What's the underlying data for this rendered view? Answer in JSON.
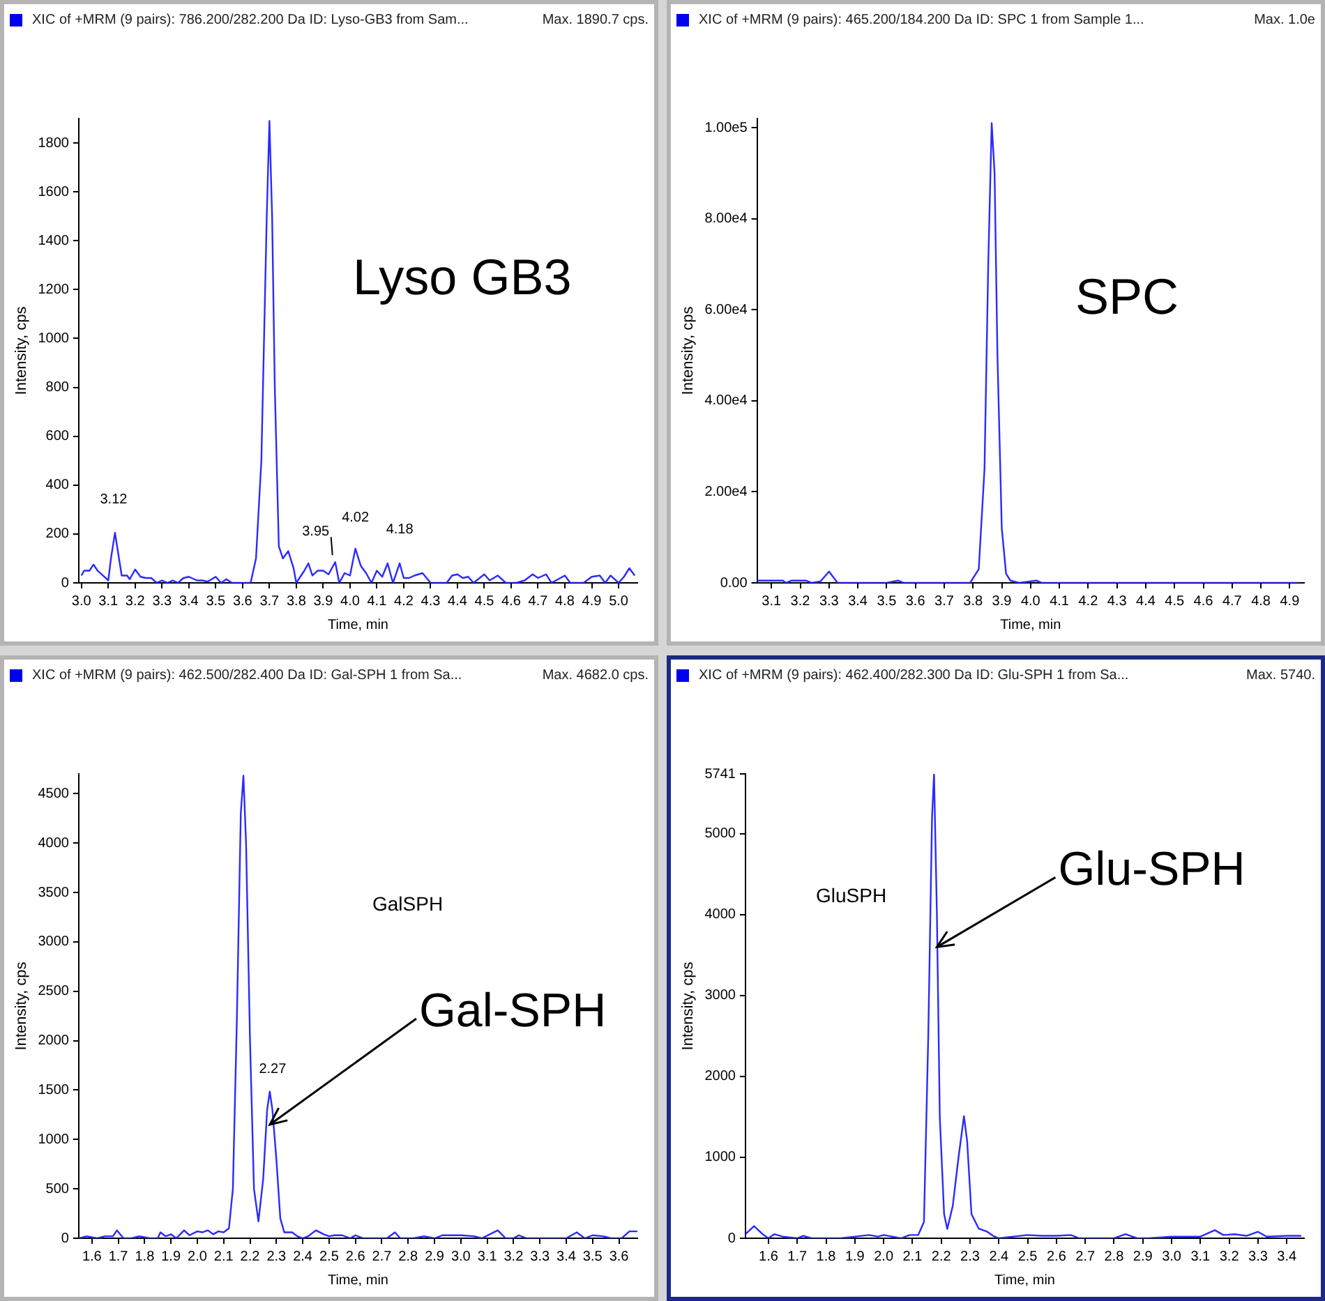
{
  "chart_data": [
    {
      "type": "line",
      "title": "XIC of +MRM (9 pairs): 786.200/282.200 Da ID: Lyso-GB3 from Sam...",
      "subtitle": "Max. 1890.7 cps.",
      "xlabel": "Time, min",
      "ylabel": "Intensity, cps",
      "annotations": [
        "Lyso GB3",
        {
          "text": "3.12",
          "x": 3.12,
          "y": 205
        },
        {
          "text": "3.95",
          "x": 3.945,
          "y": 85
        },
        {
          "text": "4.02",
          "x": 4.02,
          "y": 140
        },
        {
          "text": "4.18",
          "x": 4.185,
          "y": 80
        }
      ],
      "x": [
        3.0,
        3.01,
        3.03,
        3.045,
        3.06,
        3.08,
        3.1,
        3.11,
        3.125,
        3.14,
        3.15,
        3.17,
        3.18,
        3.2,
        3.22,
        3.24,
        3.26,
        3.28,
        3.3,
        3.32,
        3.34,
        3.36,
        3.38,
        3.4,
        3.43,
        3.45,
        3.47,
        3.5,
        3.52,
        3.54,
        3.56,
        3.63,
        3.65,
        3.67,
        3.69,
        3.7,
        3.71,
        3.72,
        3.735,
        3.75,
        3.77,
        3.79,
        3.8,
        3.83,
        3.845,
        3.86,
        3.88,
        3.9,
        3.92,
        3.945,
        3.96,
        3.98,
        4.0,
        4.02,
        4.04,
        4.06,
        4.08,
        4.1,
        4.12,
        4.14,
        4.16,
        4.185,
        4.2,
        4.22,
        4.24,
        4.27,
        4.3,
        4.36,
        4.38,
        4.4,
        4.42,
        4.44,
        4.46,
        4.5,
        4.52,
        4.55,
        4.58,
        4.62,
        4.65,
        4.68,
        4.7,
        4.73,
        4.75,
        4.8,
        4.82,
        4.87,
        4.9,
        4.93,
        4.95,
        4.97,
        5.0,
        5.02,
        5.04,
        5.06
      ],
      "series": [
        {
          "color": "#2a2aff",
          "values": [
            30,
            50,
            50,
            75,
            50,
            30,
            10,
            100,
            205,
            100,
            30,
            30,
            15,
            55,
            25,
            20,
            20,
            0,
            10,
            0,
            10,
            0,
            20,
            25,
            10,
            10,
            5,
            25,
            0,
            15,
            0,
            0,
            100,
            500,
            1500,
            1890,
            1500,
            800,
            150,
            100,
            130,
            60,
            0,
            50,
            80,
            30,
            50,
            50,
            35,
            85,
            0,
            40,
            30,
            140,
            70,
            40,
            0,
            50,
            25,
            80,
            0,
            80,
            20,
            20,
            30,
            40,
            0,
            0,
            30,
            35,
            20,
            25,
            0,
            35,
            10,
            30,
            0,
            0,
            10,
            35,
            20,
            35,
            0,
            30,
            0,
            0,
            25,
            30,
            0,
            30,
            0,
            25,
            60,
            30
          ]
        }
      ],
      "xlim": [
        2.99,
        5.07
      ],
      "ylim": [
        0,
        1900
      ],
      "xticks": [
        {
          "value": 3.0,
          "label": "3.0"
        },
        3.1,
        3.2,
        3.3,
        3.4,
        3.5,
        3.6,
        3.7,
        3.8,
        3.9,
        {
          "value": 4.0,
          "label": "4.0"
        },
        4.1,
        4.2,
        4.3,
        4.4,
        4.5,
        4.6,
        4.7,
        4.8,
        4.9,
        {
          "value": 5.0,
          "label": "5.0"
        }
      ],
      "yticks": [
        0,
        200,
        400,
        600,
        800,
        1000,
        1200,
        1400,
        1600,
        1800
      ]
    },
    {
      "type": "line",
      "title": "XIC of +MRM (9 pairs): 465.200/184.200 Da ID: SPC 1 from Sample 1...",
      "subtitle": "Max. 1.0e",
      "xlabel": "Time, min",
      "ylabel": "Intensity, cps",
      "annotations": [
        "SPC"
      ],
      "x": [
        3.05,
        3.14,
        3.15,
        3.17,
        3.22,
        3.24,
        3.27,
        3.3,
        3.33,
        3.5,
        3.54,
        3.56,
        3.79,
        3.82,
        3.84,
        3.853,
        3.865,
        3.875,
        3.885,
        3.9,
        3.915,
        3.93,
        3.96,
        4.02,
        4.04,
        4.93
      ],
      "series": [
        {
          "color": "#2a2aff",
          "values": [
            500,
            500,
            0,
            500,
            500,
            0,
            300,
            2500,
            0,
            0,
            500,
            0,
            0,
            3000,
            25000,
            70000,
            101000,
            90000,
            50000,
            12000,
            2000,
            500,
            0,
            500,
            0,
            0
          ]
        }
      ],
      "xlim": [
        3.05,
        4.95
      ],
      "ylim": [
        0,
        102000
      ],
      "xticks": [
        3.1,
        3.2,
        3.3,
        3.4,
        3.5,
        3.6,
        3.7,
        3.8,
        3.9,
        {
          "value": 4.0,
          "label": "4.0"
        },
        4.1,
        4.2,
        4.3,
        4.4,
        4.5,
        4.6,
        4.7,
        4.8,
        4.9
      ],
      "yticks": [
        {
          "value": 0,
          "label": "0.00"
        },
        {
          "value": 20000,
          "label": "2.00e4"
        },
        {
          "value": 40000,
          "label": "4.00e4"
        },
        {
          "value": 60000,
          "label": "6.00e4"
        },
        {
          "value": 80000,
          "label": "8.00e4"
        },
        {
          "value": 100000,
          "label": "1.00e5"
        }
      ]
    },
    {
      "type": "line",
      "title": "XIC of +MRM (9 pairs): 462.500/282.400 Da ID: Gal-SPH 1 from Sa...",
      "subtitle": "Max. 4682.0 cps.",
      "xlabel": "Time, min",
      "ylabel": "Intensity, cps",
      "annotations": [
        "GalSPH",
        {
          "text": "2.27",
          "x": 2.275,
          "y": 1485
        },
        {
          "text": "Gal-SPH",
          "x": 2.27,
          "y": 1150
        }
      ],
      "x": [
        1.55,
        1.58,
        1.62,
        1.65,
        1.68,
        1.695,
        1.72,
        1.75,
        1.78,
        1.82,
        1.85,
        1.86,
        1.88,
        1.9,
        1.92,
        1.95,
        1.97,
        2.0,
        2.02,
        2.04,
        2.06,
        2.08,
        2.1,
        2.12,
        2.135,
        2.15,
        2.165,
        2.175,
        2.185,
        2.2,
        2.215,
        2.232,
        2.25,
        2.265,
        2.275,
        2.285,
        2.3,
        2.315,
        2.33,
        2.36,
        2.38,
        2.4,
        2.42,
        2.45,
        2.48,
        2.5,
        2.52,
        2.55,
        2.58,
        2.6,
        2.63,
        2.72,
        2.75,
        2.77,
        2.82,
        2.86,
        2.9,
        2.93,
        2.97,
        3.0,
        3.05,
        3.08,
        3.14,
        3.17,
        3.2,
        3.22,
        3.25,
        3.4,
        3.44,
        3.47,
        3.5,
        3.54,
        3.57,
        3.61,
        3.64,
        3.67
      ],
      "series": [
        {
          "color": "#2a2aff",
          "values": [
            0,
            20,
            0,
            20,
            20,
            80,
            0,
            0,
            20,
            0,
            0,
            60,
            20,
            40,
            0,
            80,
            30,
            70,
            60,
            80,
            40,
            70,
            60,
            100,
            500,
            2200,
            4300,
            4682,
            4000,
            2000,
            500,
            170,
            600,
            1300,
            1485,
            1300,
            800,
            200,
            60,
            60,
            20,
            0,
            20,
            80,
            40,
            20,
            30,
            30,
            0,
            30,
            0,
            0,
            60,
            0,
            0,
            20,
            0,
            30,
            30,
            30,
            20,
            0,
            80,
            0,
            0,
            30,
            0,
            0,
            60,
            0,
            30,
            20,
            0,
            0,
            70,
            70
          ]
        }
      ],
      "xlim": [
        1.55,
        3.67
      ],
      "ylim": [
        0,
        4700
      ],
      "xticks": [
        1.6,
        1.7,
        1.8,
        1.9,
        {
          "value": 2.0,
          "label": "2.0"
        },
        2.1,
        2.2,
        2.3,
        2.4,
        2.5,
        2.6,
        2.7,
        2.8,
        2.9,
        {
          "value": 3.0,
          "label": "3.0"
        },
        3.1,
        3.2,
        3.3,
        3.4,
        3.5,
        3.6
      ],
      "yticks": [
        0,
        500,
        1000,
        1500,
        2000,
        2500,
        3000,
        3500,
        4000,
        4500
      ]
    },
    {
      "type": "line",
      "title": "XIC of +MRM (9 pairs): 462.400/282.300 Da ID: Glu-SPH 1 from Sa...",
      "subtitle": "Max. 5740.",
      "xlabel": "Time, min",
      "ylabel": "Intensity, cps",
      "annotations": [
        "GluSPH",
        {
          "text": "Glu-SPH",
          "x": 2.18,
          "y": 3600
        }
      ],
      "x": [
        1.52,
        1.55,
        1.58,
        1.6,
        1.62,
        1.65,
        1.7,
        1.72,
        1.75,
        1.85,
        1.9,
        1.95,
        1.98,
        2.0,
        2.03,
        2.06,
        2.09,
        2.12,
        2.14,
        2.155,
        2.168,
        2.175,
        2.185,
        2.195,
        2.21,
        2.221,
        2.24,
        2.26,
        2.279,
        2.29,
        2.305,
        2.33,
        2.36,
        2.38,
        2.4,
        2.45,
        2.5,
        2.55,
        2.6,
        2.65,
        2.68,
        2.72,
        2.8,
        2.84,
        2.88,
        2.92,
        3.0,
        3.1,
        3.15,
        3.18,
        3.22,
        3.26,
        3.3,
        3.33,
        3.4,
        3.45
      ],
      "series": [
        {
          "color": "#2a2aff",
          "values": [
            50,
            150,
            50,
            0,
            50,
            20,
            0,
            30,
            0,
            0,
            20,
            40,
            20,
            40,
            20,
            0,
            40,
            40,
            200,
            2500,
            5200,
            5741,
            4000,
            1500,
            300,
            115,
            400,
            1000,
            1510,
            1200,
            300,
            120,
            80,
            30,
            0,
            20,
            40,
            30,
            30,
            40,
            0,
            0,
            0,
            50,
            0,
            0,
            20,
            20,
            100,
            40,
            50,
            30,
            80,
            20,
            30,
            30
          ]
        }
      ],
      "xlim": [
        1.52,
        3.46
      ],
      "ylim": [
        0,
        5741
      ],
      "xticks": [
        1.6,
        1.7,
        1.8,
        1.9,
        {
          "value": 2.0,
          "label": "2.0"
        },
        2.1,
        2.2,
        2.3,
        2.4,
        2.5,
        2.6,
        2.7,
        2.8,
        2.9,
        {
          "value": 3.0,
          "label": "3.0"
        },
        3.1,
        3.2,
        3.3,
        3.4
      ],
      "yticks": [
        0,
        1000,
        2000,
        3000,
        4000,
        5000,
        5741
      ]
    }
  ]
}
